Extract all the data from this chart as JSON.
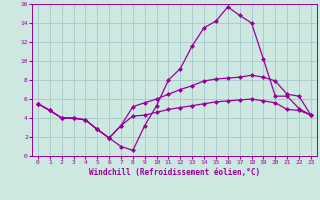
{
  "bg_color": "#cce8e0",
  "grid_color": "#aacccc",
  "line_color": "#990099",
  "marker": "D",
  "marker_size": 2.5,
  "xlim": [
    -0.5,
    23.5
  ],
  "ylim": [
    0,
    16
  ],
  "xlabel": "Windchill (Refroidissement éolien,°C)",
  "xticks": [
    0,
    1,
    2,
    3,
    4,
    5,
    6,
    7,
    8,
    9,
    10,
    11,
    12,
    13,
    14,
    15,
    16,
    17,
    18,
    19,
    20,
    21,
    22,
    23
  ],
  "yticks": [
    0,
    2,
    4,
    6,
    8,
    10,
    12,
    14,
    16
  ],
  "curve1_x": [
    0,
    1,
    2,
    3,
    4,
    5,
    6,
    7,
    8,
    9,
    10,
    11,
    12,
    13,
    14,
    15,
    16,
    17,
    18,
    19,
    20,
    21,
    22,
    23
  ],
  "curve1_y": [
    5.5,
    4.8,
    4.0,
    4.0,
    3.8,
    2.8,
    1.9,
    1.0,
    0.6,
    3.2,
    5.3,
    8.0,
    9.2,
    11.6,
    13.5,
    14.2,
    15.7,
    14.8,
    14.0,
    10.2,
    6.3,
    6.3,
    5.0,
    4.3
  ],
  "curve2_x": [
    0,
    1,
    2,
    3,
    4,
    5,
    6,
    7,
    8,
    9,
    10,
    11,
    12,
    13,
    14,
    15,
    16,
    17,
    18,
    19,
    20,
    21,
    22,
    23
  ],
  "curve2_y": [
    5.5,
    4.8,
    4.0,
    4.0,
    3.8,
    2.8,
    1.9,
    3.2,
    5.2,
    5.6,
    6.0,
    6.5,
    7.0,
    7.4,
    7.9,
    8.1,
    8.2,
    8.3,
    8.5,
    8.3,
    7.9,
    6.5,
    6.3,
    4.3
  ],
  "curve3_x": [
    0,
    1,
    2,
    3,
    4,
    5,
    6,
    7,
    8,
    9,
    10,
    11,
    12,
    13,
    14,
    15,
    16,
    17,
    18,
    19,
    20,
    21,
    22,
    23
  ],
  "curve3_y": [
    5.5,
    4.8,
    4.0,
    4.0,
    3.8,
    2.8,
    1.9,
    3.2,
    4.2,
    4.3,
    4.6,
    4.9,
    5.1,
    5.3,
    5.5,
    5.7,
    5.8,
    5.9,
    6.0,
    5.8,
    5.6,
    4.9,
    4.8,
    4.3
  ]
}
